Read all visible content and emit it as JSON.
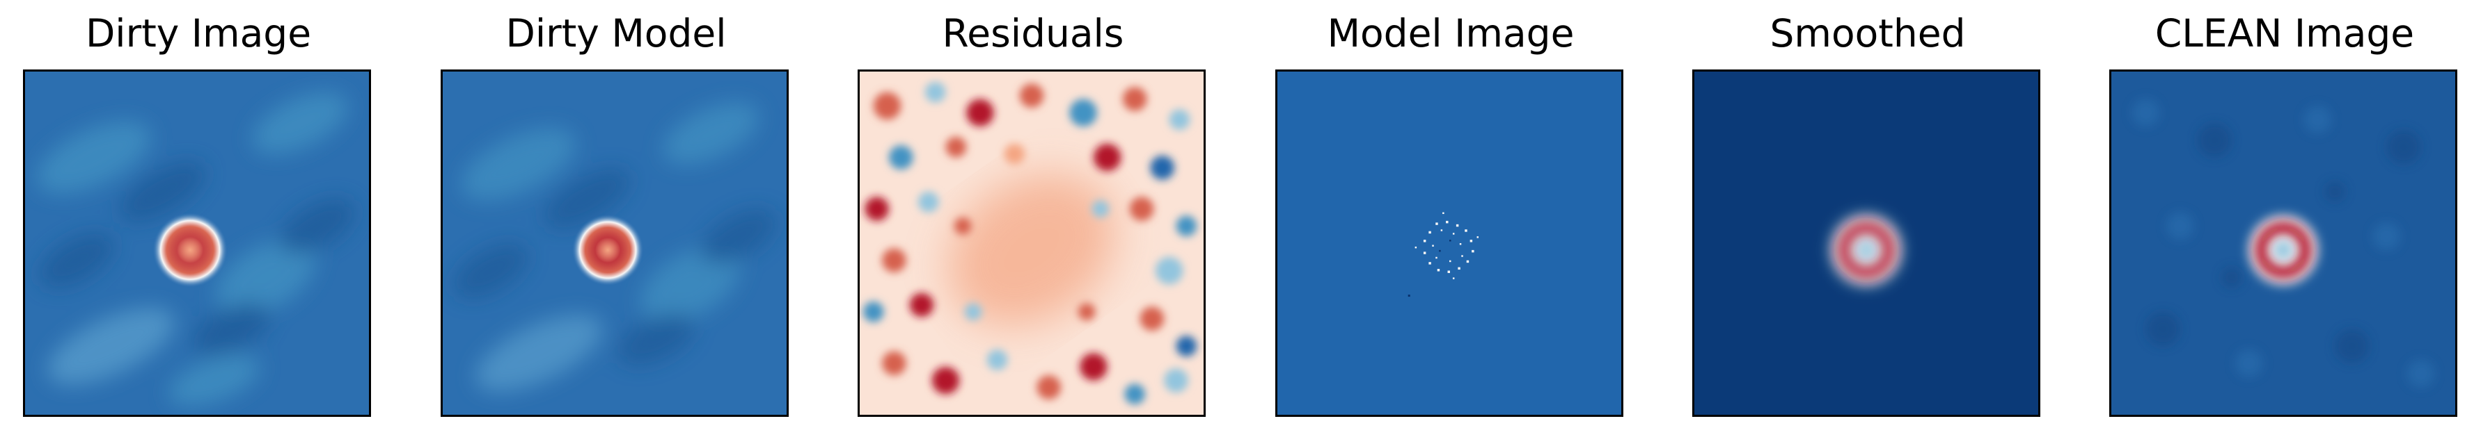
{
  "figure": {
    "panels": [
      {
        "title": "Dirty Image"
      },
      {
        "title": "Dirty Model"
      },
      {
        "title": "Residuals"
      },
      {
        "title": "Model Image"
      },
      {
        "title": "Smoothed"
      },
      {
        "title": "CLEAN Image"
      }
    ],
    "colormap": "RdBu_r",
    "colors": {
      "deep_blue": "#08306b",
      "mid_blue": "#2166ac",
      "light_blue": "#4393c3",
      "white": "#f7f7f7",
      "light_red": "#f4a582",
      "red": "#d6604d",
      "dark_red": "#b2182b"
    }
  }
}
